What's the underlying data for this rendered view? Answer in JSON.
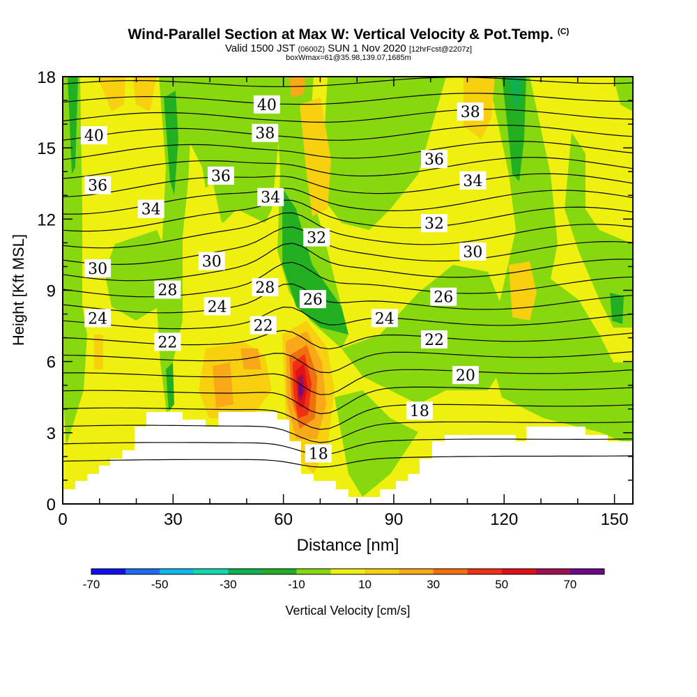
{
  "title": {
    "main": "Wind-Parallel Section at Max W: Vertical Velocity & Pot.Temp.",
    "copyright": "(C)",
    "valid_prefix": "Valid 1500 JST",
    "valid_utc": "(0600Z)",
    "valid_date": "SUN 1 Nov 2020",
    "forecast": "[12hrFcst@2207z]",
    "box_info": "boxWmax=61@35.98,139.07,1685m"
  },
  "chart_data": {
    "type": "heatmap",
    "title": "Wind-Parallel Section at Max W: Vertical Velocity & Pot.Temp.",
    "xlabel": "Distance [nm]",
    "ylabel": "Height [Kft MSL]",
    "xlim": [
      0,
      155
    ],
    "ylim": [
      0,
      18
    ],
    "x_ticks": [
      "0",
      "30",
      "60",
      "90",
      "120",
      "150"
    ],
    "y_ticks": [
      "0",
      "3",
      "6",
      "9",
      "12",
      "15",
      "18"
    ],
    "colorbar": {
      "label": "Vertical Velocity [cm/s]",
      "tick_labels": [
        "-70",
        "-50",
        "-30",
        "-10",
        "10",
        "30",
        "50",
        "70"
      ],
      "colors": [
        "#1010ee",
        "#1e6cf0",
        "#10b8f0",
        "#10d8b0",
        "#10b050",
        "#22b022",
        "#88d810",
        "#f0f010",
        "#f8d010",
        "#f8a818",
        "#f07010",
        "#f03010",
        "#e01018",
        "#a01050",
        "#6a0a8a"
      ]
    },
    "contour_labels": [
      {
        "x": 8.5,
        "y": 15.5,
        "text": "40"
      },
      {
        "x": 55.5,
        "y": 16.8,
        "text": "40"
      },
      {
        "x": 110.8,
        "y": 16.5,
        "text": "38"
      },
      {
        "x": 55.0,
        "y": 15.6,
        "text": "38"
      },
      {
        "x": 101.0,
        "y": 14.5,
        "text": "36"
      },
      {
        "x": 9.5,
        "y": 13.4,
        "text": "36"
      },
      {
        "x": 43.0,
        "y": 13.8,
        "text": "36"
      },
      {
        "x": 111.5,
        "y": 13.6,
        "text": "34"
      },
      {
        "x": 56.5,
        "y": 12.9,
        "text": "34"
      },
      {
        "x": 24.0,
        "y": 12.4,
        "text": "34"
      },
      {
        "x": 101.0,
        "y": 11.8,
        "text": "32"
      },
      {
        "x": 69.0,
        "y": 11.2,
        "text": "32"
      },
      {
        "x": 111.5,
        "y": 10.6,
        "text": "30"
      },
      {
        "x": 9.5,
        "y": 9.9,
        "text": "30"
      },
      {
        "x": 40.5,
        "y": 10.2,
        "text": "30"
      },
      {
        "x": 55.0,
        "y": 9.1,
        "text": "28"
      },
      {
        "x": 28.5,
        "y": 9.0,
        "text": "28"
      },
      {
        "x": 103.5,
        "y": 8.7,
        "text": "26"
      },
      {
        "x": 68.0,
        "y": 8.6,
        "text": "26"
      },
      {
        "x": 42.0,
        "y": 8.3,
        "text": "24"
      },
      {
        "x": 9.5,
        "y": 7.8,
        "text": "24"
      },
      {
        "x": 87.5,
        "y": 7.8,
        "text": "24"
      },
      {
        "x": 54.5,
        "y": 7.5,
        "text": "22"
      },
      {
        "x": 101.0,
        "y": 6.9,
        "text": "22"
      },
      {
        "x": 28.5,
        "y": 6.8,
        "text": "22"
      },
      {
        "x": 109.5,
        "y": 5.4,
        "text": "20"
      },
      {
        "x": 97.0,
        "y": 3.9,
        "text": "18"
      },
      {
        "x": 69.5,
        "y": 2.1,
        "text": "18"
      }
    ]
  }
}
